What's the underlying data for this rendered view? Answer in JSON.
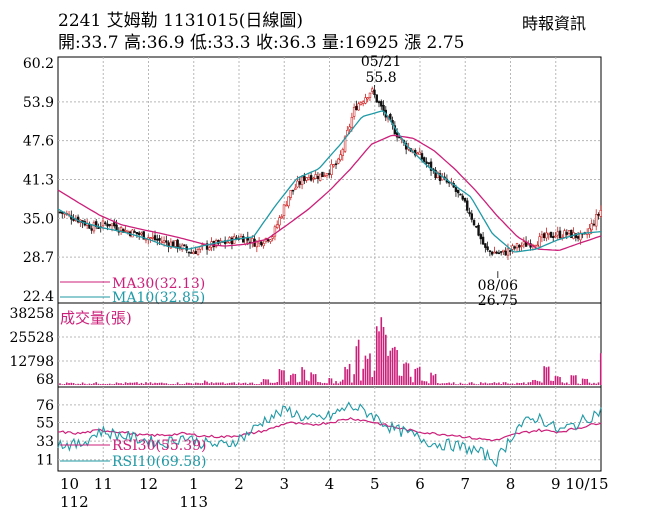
{
  "header": {
    "title": "2241 艾姆勒 1131015(日線圖)",
    "source": "時報資訊",
    "ohlc": "開:33.7 高:36.9 低:33.3 收:36.3 量:16925 漲 2.75"
  },
  "chart_data": [
    {
      "type": "candlestick",
      "panel": "price",
      "y_ticks": [
        "60.2",
        "53.9",
        "47.6",
        "41.3",
        "35.0",
        "28.7",
        "22.4"
      ],
      "ylim": [
        22.4,
        60.2
      ],
      "annotations": [
        {
          "label_top": "05/21",
          "label_bottom": "55.8",
          "value": 55.8
        },
        {
          "label_top": "08/06",
          "label_bottom": "26.75",
          "value": 26.75
        }
      ],
      "legend": [
        {
          "name": "MA30(32.13)",
          "color": "#cc1f7a"
        },
        {
          "name": "MA10(32.85)",
          "color": "#1f9aa6"
        }
      ],
      "close_anchors": [
        36.0,
        35.0,
        33.6,
        34.2,
        33.0,
        32.3,
        31.4,
        30.8,
        29.5,
        30.5,
        31.0,
        32.0,
        31.0,
        32.3,
        39.0,
        41.8,
        42.0,
        44.0,
        53.0,
        55.8,
        51.0,
        47.0,
        45.0,
        42.0,
        40.0,
        36.0,
        29.7,
        29.3,
        30.5,
        31.2,
        32.3,
        32.5,
        31.8,
        36.3
      ],
      "ma30_anchors": [
        39.6,
        37.5,
        35.5,
        34.0,
        33.2,
        32.5,
        31.7,
        30.8,
        30.5,
        30.8,
        31.6,
        34.0,
        36.5,
        39.5,
        43.0,
        47.0,
        48.5,
        48.0,
        46.0,
        43.0,
        39.5,
        35.5,
        32.0,
        30.0,
        29.8,
        31.0,
        32.13
      ],
      "ma10_anchors": [
        36.5,
        34.5,
        33.5,
        32.8,
        31.8,
        30.5,
        30.0,
        30.8,
        31.5,
        32.0,
        37.0,
        41.5,
        43.0,
        47.0,
        51.5,
        52.5,
        47.0,
        43.5,
        41.0,
        38.5,
        32.5,
        29.5,
        30.0,
        31.5,
        32.5,
        32.85
      ]
    },
    {
      "type": "bar",
      "panel": "volume",
      "title": "成交量(張)",
      "y_ticks": [
        "38258",
        "25528",
        "12798",
        "68"
      ],
      "ylim": [
        68,
        38258
      ],
      "last_value": 16925,
      "spikes": [
        {
          "pos": 0.27,
          "value": 2500
        },
        {
          "pos": 0.38,
          "value": 3500
        },
        {
          "pos": 0.41,
          "value": 9000
        },
        {
          "pos": 0.43,
          "value": 7500
        },
        {
          "pos": 0.45,
          "value": 11000
        },
        {
          "pos": 0.47,
          "value": 8000
        },
        {
          "pos": 0.5,
          "value": 4500
        },
        {
          "pos": 0.53,
          "value": 12000
        },
        {
          "pos": 0.55,
          "value": 25000
        },
        {
          "pos": 0.57,
          "value": 19000
        },
        {
          "pos": 0.59,
          "value": 38258
        },
        {
          "pos": 0.6,
          "value": 33000
        },
        {
          "pos": 0.61,
          "value": 21000
        },
        {
          "pos": 0.62,
          "value": 25000
        },
        {
          "pos": 0.64,
          "value": 15000
        },
        {
          "pos": 0.66,
          "value": 10000
        },
        {
          "pos": 0.69,
          "value": 7000
        },
        {
          "pos": 0.88,
          "value": 3000
        },
        {
          "pos": 0.9,
          "value": 12000
        },
        {
          "pos": 0.92,
          "value": 5000
        },
        {
          "pos": 0.95,
          "value": 6000
        },
        {
          "pos": 0.97,
          "value": 4000
        }
      ]
    },
    {
      "type": "line",
      "panel": "rsi",
      "y_ticks": [
        "76",
        "55",
        "33",
        "11"
      ],
      "ylim": [
        0,
        90
      ],
      "legend": [
        {
          "name": "RSI30(55.39)",
          "color": "#cc1f7a"
        },
        {
          "name": "RSI10(69.58)",
          "color": "#1f9aa6"
        }
      ],
      "rsi30_anchors": [
        44,
        42,
        46,
        44,
        40,
        40,
        42,
        39,
        38,
        41,
        46,
        55,
        52,
        55,
        60,
        56,
        50,
        45,
        42,
        40,
        36,
        34,
        42,
        46,
        44,
        49,
        55.39
      ],
      "rsi10_anchors": [
        30,
        28,
        45,
        40,
        35,
        30,
        38,
        30,
        28,
        40,
        60,
        70,
        58,
        62,
        75,
        65,
        48,
        40,
        30,
        28,
        22,
        10,
        50,
        62,
        45,
        55,
        69.58
      ]
    }
  ],
  "x_axis": {
    "months": [
      "10",
      "11",
      "12",
      "1",
      "2",
      "3",
      "4",
      "5",
      "6",
      "7",
      "8",
      "9",
      "10/15"
    ],
    "years": [
      "112",
      "113"
    ]
  }
}
